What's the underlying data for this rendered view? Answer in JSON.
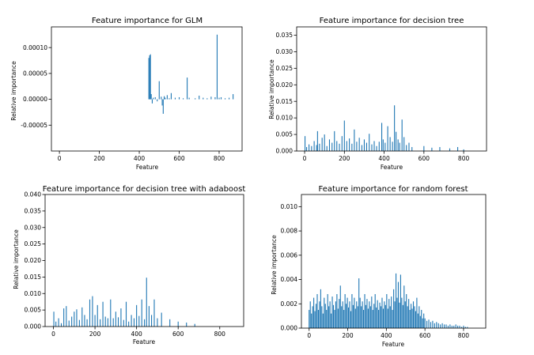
{
  "chart_data": [
    {
      "type": "bar",
      "title": "Feature importance for GLM",
      "xlabel": "Feature",
      "ylabel": "Relative importance",
      "xlim": [
        -40,
        915
      ],
      "ylim": [
        -0.0001,
        0.00014
      ],
      "xticks": [
        0,
        200,
        400,
        600,
        800
      ],
      "yticks": [
        -5e-05,
        0.0,
        5e-05,
        0.0001
      ],
      "ytick_labels": [
        "-0.00005",
        "0.00000",
        "0.00005",
        "0.00010"
      ],
      "color": "#1f77b4",
      "x": [
        448,
        452,
        456,
        460,
        465,
        470,
        480,
        490,
        500,
        510,
        515,
        520,
        525,
        530,
        540,
        550,
        560,
        580,
        600,
        620,
        640,
        650,
        680,
        700,
        720,
        740,
        760,
        780,
        790,
        800,
        810,
        830,
        850,
        870
      ],
      "values": [
        8e-05,
        8.5e-05,
        8.7e-05,
        1e-05,
        -8e-06,
        3e-06,
        4e-06,
        -4e-06,
        3.5e-05,
        5e-06,
        -1.2e-05,
        -2.8e-05,
        6e-06,
        3e-06,
        8e-06,
        2e-06,
        1.2e-05,
        3e-06,
        4e-06,
        2e-06,
        4.2e-05,
        3e-06,
        2e-06,
        7e-06,
        3e-06,
        2e-06,
        5e-06,
        4e-06,
        0.000125,
        3e-06,
        4e-06,
        2e-06,
        3e-06,
        1e-05
      ]
    },
    {
      "type": "bar",
      "title": "Feature importance for decision tree",
      "xlabel": "Feature",
      "ylabel": "Relative importance",
      "xlim": [
        -40,
        915
      ],
      "ylim": [
        0,
        0.0375
      ],
      "xticks": [
        0,
        200,
        400,
        600,
        800
      ],
      "yticks": [
        0.0,
        0.005,
        0.01,
        0.015,
        0.02,
        0.025,
        0.03,
        0.035
      ],
      "ytick_labels": [
        "0.000",
        "0.005",
        "0.010",
        "0.015",
        "0.020",
        "0.025",
        "0.030",
        "0.035"
      ],
      "color": "#1f77b4",
      "x": [
        2,
        10,
        22,
        35,
        48,
        60,
        65,
        75,
        88,
        100,
        112,
        125,
        138,
        150,
        162,
        175,
        188,
        200,
        212,
        225,
        238,
        250,
        262,
        275,
        288,
        300,
        312,
        325,
        338,
        350,
        362,
        375,
        388,
        395,
        405,
        418,
        430,
        442,
        452,
        460,
        470,
        478,
        490,
        500,
        512,
        525,
        540,
        600,
        640,
        680,
        730,
        770,
        800
      ],
      "values": [
        0.0045,
        0.0012,
        0.002,
        0.0015,
        0.003,
        0.0018,
        0.006,
        0.0022,
        0.004,
        0.005,
        0.0015,
        0.0035,
        0.0025,
        0.006,
        0.003,
        0.0022,
        0.0045,
        0.0092,
        0.003,
        0.0038,
        0.0022,
        0.0065,
        0.0028,
        0.004,
        0.0018,
        0.0035,
        0.0025,
        0.0052,
        0.002,
        0.003,
        0.0015,
        0.0028,
        0.0085,
        0.0035,
        0.0025,
        0.0075,
        0.0042,
        0.0028,
        0.0138,
        0.0058,
        0.0035,
        0.0025,
        0.0095,
        0.0042,
        0.0018,
        0.0025,
        0.0012,
        0.0015,
        0.001,
        0.0012,
        0.0008,
        0.0012,
        0.0005
      ]
    },
    {
      "type": "bar",
      "title": "Feature importance for decision tree with adaboost",
      "xlabel": "Feature",
      "ylabel": "Relative importance",
      "xlim": [
        -40,
        915
      ],
      "ylim": [
        0,
        0.04
      ],
      "xticks": [
        0,
        200,
        400,
        600,
        800
      ],
      "yticks": [
        0.0,
        0.005,
        0.01,
        0.015,
        0.02,
        0.025,
        0.03,
        0.035,
        0.04
      ],
      "ytick_labels": [
        "0.000",
        "0.005",
        "0.010",
        "0.015",
        "0.020",
        "0.025",
        "0.030",
        "0.035",
        "0.040"
      ],
      "color": "#1f77b4",
      "x": [
        2,
        12,
        25,
        38,
        50,
        62,
        75,
        88,
        100,
        112,
        125,
        138,
        150,
        162,
        175,
        188,
        200,
        212,
        225,
        238,
        250,
        262,
        275,
        288,
        300,
        312,
        325,
        338,
        350,
        362,
        375,
        388,
        400,
        412,
        425,
        438,
        448,
        460,
        472,
        485,
        500,
        520,
        560,
        600,
        640,
        680
      ],
      "values": [
        0.0045,
        0.0015,
        0.0025,
        0.001,
        0.0055,
        0.0062,
        0.0018,
        0.003,
        0.0045,
        0.0052,
        0.002,
        0.0058,
        0.0035,
        0.0022,
        0.0082,
        0.0092,
        0.0035,
        0.0065,
        0.0022,
        0.0075,
        0.003,
        0.0025,
        0.0082,
        0.0025,
        0.0045,
        0.0028,
        0.0055,
        0.002,
        0.0075,
        0.0015,
        0.0035,
        0.0025,
        0.0065,
        0.0032,
        0.0082,
        0.0022,
        0.0148,
        0.0062,
        0.0035,
        0.0082,
        0.0025,
        0.0042,
        0.0022,
        0.0015,
        0.0012,
        0.0008
      ]
    },
    {
      "type": "bar",
      "title": "Feature importance for random forest",
      "xlabel": "Feature",
      "ylabel": "Relative importance",
      "xlim": [
        -40,
        915
      ],
      "ylim": [
        0,
        0.011
      ],
      "xticks": [
        0,
        200,
        400,
        600,
        800
      ],
      "yticks": [
        0.0,
        0.002,
        0.004,
        0.006,
        0.008,
        0.01
      ],
      "ytick_labels": [
        "0.000",
        "0.002",
        "0.004",
        "0.006",
        "0.008",
        "0.010"
      ],
      "color": "#1f77b4",
      "x": [
        0,
        6,
        12,
        18,
        24,
        30,
        36,
        42,
        48,
        54,
        60,
        66,
        72,
        78,
        84,
        90,
        96,
        102,
        108,
        114,
        120,
        126,
        132,
        138,
        144,
        150,
        156,
        162,
        168,
        174,
        180,
        186,
        192,
        198,
        204,
        210,
        216,
        222,
        228,
        234,
        240,
        246,
        252,
        258,
        264,
        270,
        276,
        282,
        288,
        294,
        300,
        306,
        312,
        318,
        324,
        330,
        336,
        342,
        348,
        354,
        360,
        366,
        372,
        378,
        384,
        390,
        396,
        402,
        408,
        414,
        420,
        426,
        432,
        438,
        444,
        450,
        456,
        462,
        468,
        474,
        480,
        486,
        492,
        498,
        504,
        510,
        516,
        522,
        528,
        534,
        540,
        546,
        552,
        558,
        564,
        570,
        576,
        582,
        588,
        594,
        600,
        610,
        620,
        630,
        640,
        650,
        660,
        670,
        680,
        690,
        700,
        710,
        720,
        730,
        740,
        750,
        760,
        770,
        780,
        790,
        800,
        810,
        820
      ],
      "values": [
        0.0015,
        0.0022,
        0.0012,
        0.0018,
        0.0025,
        0.0014,
        0.002,
        0.0028,
        0.0015,
        0.0022,
        0.0032,
        0.0018,
        0.0012,
        0.0025,
        0.002,
        0.0015,
        0.0028,
        0.0018,
        0.0022,
        0.0012,
        0.0026,
        0.0019,
        0.0015,
        0.0022,
        0.0028,
        0.0016,
        0.0024,
        0.0035,
        0.0018,
        0.0022,
        0.0015,
        0.0028,
        0.002,
        0.0025,
        0.0017,
        0.0022,
        0.0014,
        0.0028,
        0.0019,
        0.0025,
        0.0016,
        0.0022,
        0.0018,
        0.0041,
        0.0025,
        0.0018,
        0.0022,
        0.0015,
        0.0028,
        0.0019,
        0.0024,
        0.0016,
        0.0022,
        0.0018,
        0.0026,
        0.0015,
        0.002,
        0.0028,
        0.0017,
        0.0023,
        0.0015,
        0.0021,
        0.0018,
        0.0025,
        0.0016,
        0.0022,
        0.0019,
        0.0028,
        0.0016,
        0.0024,
        0.0018,
        0.0026,
        0.0015,
        0.0032,
        0.0022,
        0.0045,
        0.0025,
        0.0038,
        0.0021,
        0.0044,
        0.0025,
        0.0019,
        0.0035,
        0.0022,
        0.0028,
        0.0018,
        0.0024,
        0.0015,
        0.002,
        0.0016,
        0.0022,
        0.0018,
        0.0014,
        0.0025,
        0.0012,
        0.0018,
        0.001,
        0.0015,
        0.0008,
        0.0012,
        0.0008,
        0.0006,
        0.0007,
        0.0005,
        0.0006,
        0.0004,
        0.0005,
        0.0004,
        0.0003,
        0.0004,
        0.0003,
        0.0003,
        0.0002,
        0.0003,
        0.0002,
        0.0002,
        0.0003,
        0.0002,
        0.0002,
        0.0001,
        0.0002,
        0.0001,
        0.0001
      ]
    }
  ]
}
